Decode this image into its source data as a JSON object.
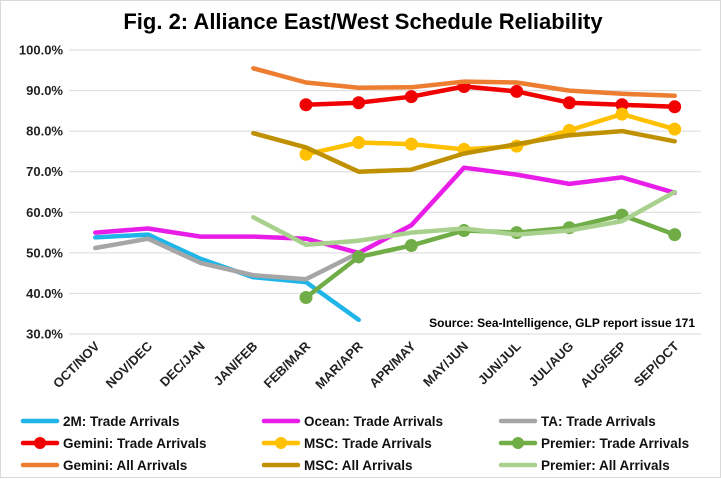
{
  "chart_data": {
    "type": "line",
    "title": "Fig. 2: Alliance East/West Schedule Reliability",
    "source_note": "Source: Sea-Intelligence, GLP report issue 171",
    "categories": [
      "OCT/NOV",
      "NOV/DEC",
      "DEC/JAN",
      "JAN/FEB",
      "FEB/MAR",
      "MAR/APR",
      "APR/MAY",
      "MAY/JUN",
      "JUN/JUL",
      "JUL/AUG",
      "AUG/SEP",
      "SEP/OCT"
    ],
    "y_tick_labels": [
      "30.0%",
      "40.0%",
      "50.0%",
      "60.0%",
      "70.0%",
      "80.0%",
      "90.0%",
      "100.0%"
    ],
    "ylim": [
      30,
      100
    ],
    "grid": "horizontal",
    "legend_position": "bottom",
    "series": [
      {
        "name": "2M: Trade Arrivals",
        "color": "#1fb5e8",
        "markers": false,
        "values": [
          53.8,
          54.5,
          48.5,
          44.0,
          42.8,
          33.5,
          null,
          null,
          null,
          null,
          null,
          null
        ]
      },
      {
        "name": "Ocean: Trade Arrivals",
        "color": "#e81ee8",
        "markers": false,
        "values": [
          55.0,
          56.0,
          54.0,
          54.0,
          53.5,
          50.0,
          56.8,
          71.0,
          69.3,
          67.0,
          68.6,
          64.8
        ]
      },
      {
        "name": "TA: Trade Arrivals",
        "color": "#a6a6a6",
        "markers": false,
        "values": [
          51.2,
          53.5,
          47.5,
          44.5,
          43.5,
          50.0,
          null,
          null,
          null,
          null,
          null,
          null
        ]
      },
      {
        "name": "Gemini: Trade Arrivals",
        "color": "#f00000",
        "markers": true,
        "values": [
          null,
          null,
          null,
          null,
          86.5,
          87.0,
          88.5,
          91.0,
          89.8,
          87.0,
          86.5,
          86.0
        ]
      },
      {
        "name": "MSC: Trade Arrivals",
        "color": "#ffc000",
        "markers": true,
        "values": [
          null,
          null,
          null,
          null,
          74.3,
          77.2,
          76.8,
          75.5,
          76.3,
          80.2,
          84.2,
          80.5
        ]
      },
      {
        "name": "Premier: Trade Arrivals",
        "color": "#70ad47",
        "markers": true,
        "values": [
          null,
          null,
          null,
          null,
          39.0,
          49.0,
          51.8,
          55.5,
          55.0,
          56.2,
          59.3,
          54.5
        ]
      },
      {
        "name": "Gemini: All Arrivals",
        "color": "#ed7d31",
        "markers": false,
        "values": [
          null,
          null,
          null,
          95.5,
          92.0,
          90.7,
          90.8,
          92.2,
          92.0,
          90.0,
          89.2,
          88.7
        ]
      },
      {
        "name": "MSC: All Arrivals",
        "color": "#bf9000",
        "markers": false,
        "values": [
          null,
          null,
          null,
          79.5,
          76.0,
          70.0,
          70.5,
          74.5,
          76.8,
          79.0,
          80.0,
          77.5
        ]
      },
      {
        "name": "Premier: All Arrivals",
        "color": "#a9d18e",
        "markers": false,
        "values": [
          null,
          null,
          null,
          58.8,
          52.0,
          53.0,
          55.0,
          56.0,
          54.5,
          55.5,
          57.8,
          65.0
        ]
      }
    ]
  }
}
